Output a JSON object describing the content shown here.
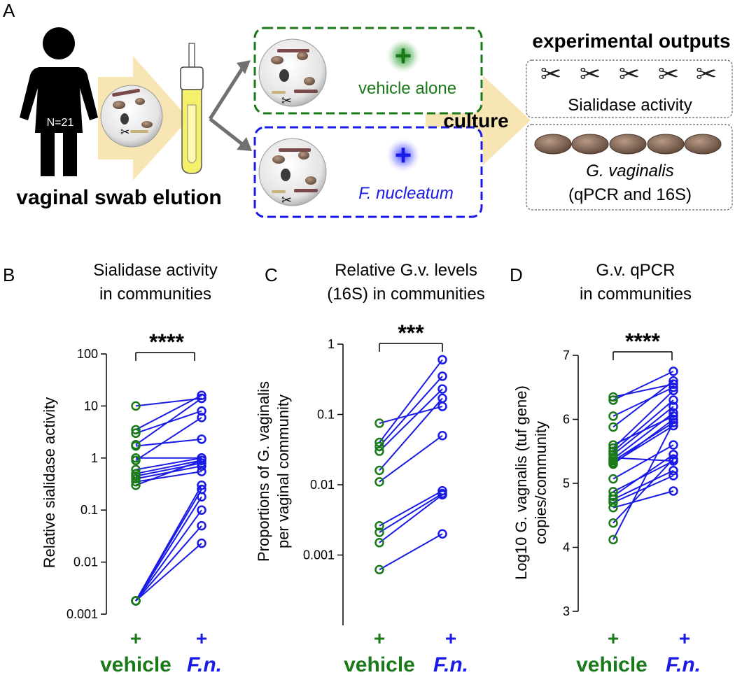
{
  "panel_a": {
    "letter": "A",
    "donor_n": "N=21",
    "swab_label": "vaginal swab elution",
    "vehicle_label": "vehicle alone",
    "fn_label": "F. nucleatum",
    "culture_label": "culture",
    "outputs_title": "experimental outputs",
    "output_sialidase": "Sialidase activity",
    "output_gv_name": "G. vaginalis",
    "output_gv_methods": "(qPCR and 16S)",
    "colors": {
      "vehicle": "#1a7a1a",
      "fn": "#1a1ae6",
      "arrow_fill": "#f7e6b4",
      "swab_fill": "#f4f06a"
    }
  },
  "chart_data": [
    {
      "type": "scatter",
      "panel": "B",
      "title": [
        "Sialidase activity",
        "in communities"
      ],
      "ylabel": "Relative sialidase activity",
      "yscale": "log",
      "ylim": [
        0.001,
        100
      ],
      "yticks": [
        0.001,
        0.01,
        0.1,
        1,
        10,
        100
      ],
      "ytick_labels": [
        "0.001",
        "0.01",
        "0.1",
        "1",
        "10",
        "100"
      ],
      "categories": [
        "vehicle",
        "F.n."
      ],
      "category_prefix": "+",
      "significance": "****",
      "pairs": [
        [
          10,
          14
        ],
        [
          3.5,
          16
        ],
        [
          3,
          8
        ],
        [
          1.8,
          14
        ],
        [
          1.7,
          2.3
        ],
        [
          1,
          1
        ],
        [
          0.9,
          6
        ],
        [
          0.6,
          1
        ],
        [
          0.5,
          0.9
        ],
        [
          0.45,
          0.8
        ],
        [
          0.4,
          0.7
        ],
        [
          0.35,
          0.55
        ],
        [
          0.3,
          0.9
        ],
        [
          0.0018,
          0.3
        ],
        [
          0.0018,
          0.25
        ],
        [
          0.0018,
          0.18
        ],
        [
          0.0018,
          0.1
        ],
        [
          0.0018,
          0.05
        ],
        [
          0.0018,
          0.023
        ]
      ]
    },
    {
      "type": "scatter",
      "panel": "C",
      "title": [
        "Relative G.v. levels",
        "(16S) in communities"
      ],
      "ylabel": [
        "Proportions of G. vaginalis",
        "per vaginal community"
      ],
      "yscale": "log",
      "ylim": [
        0.0001,
        1
      ],
      "yticks": [
        0.001,
        0.01,
        0.1,
        1
      ],
      "ytick_labels": [
        "0.001",
        "0.01",
        "0.1",
        "1"
      ],
      "categories": [
        "vehicle",
        "F.n."
      ],
      "category_prefix": "+",
      "significance": "***",
      "pairs": [
        [
          0.075,
          0.13
        ],
        [
          0.04,
          0.6
        ],
        [
          0.035,
          0.35
        ],
        [
          0.03,
          0.23
        ],
        [
          0.016,
          0.17
        ],
        [
          0.011,
          0.05
        ],
        [
          0.0026,
          0.0082
        ],
        [
          0.0021,
          0.0075
        ],
        [
          0.0015,
          0.0072
        ],
        [
          0.00062,
          0.002
        ]
      ]
    },
    {
      "type": "scatter",
      "panel": "D",
      "title": [
        "G.v. qPCR",
        "in communities"
      ],
      "ylabel": [
        "Log10 G. vagnalis (tuf gene)",
        "copies/community"
      ],
      "yscale": "linear",
      "ylim": [
        3,
        7
      ],
      "yticks": [
        3,
        4,
        5,
        6,
        7
      ],
      "ytick_labels": [
        "3",
        "4",
        "5",
        "6",
        "7"
      ],
      "categories": [
        "vehicle",
        "F.n."
      ],
      "category_prefix": "+",
      "significance": "****",
      "pairs": [
        [
          6.35,
          6.55
        ],
        [
          6.3,
          6.75
        ],
        [
          6.05,
          6.5
        ],
        [
          5.88,
          6.6
        ],
        [
          5.6,
          6.05
        ],
        [
          5.55,
          6.45
        ],
        [
          5.5,
          6.3
        ],
        [
          5.45,
          6.2
        ],
        [
          5.4,
          5.35
        ],
        [
          5.38,
          6.1
        ],
        [
          5.35,
          5.95
        ],
        [
          5.32,
          5.9
        ],
        [
          5.3,
          6.0
        ],
        [
          5.07,
          5.6
        ],
        [
          4.87,
          5.35
        ],
        [
          4.8,
          5.45
        ],
        [
          4.75,
          5.2
        ],
        [
          4.7,
          5.12
        ],
        [
          4.62,
          4.88
        ],
        [
          4.38,
          5.38
        ],
        [
          4.12,
          5.95
        ]
      ]
    }
  ]
}
